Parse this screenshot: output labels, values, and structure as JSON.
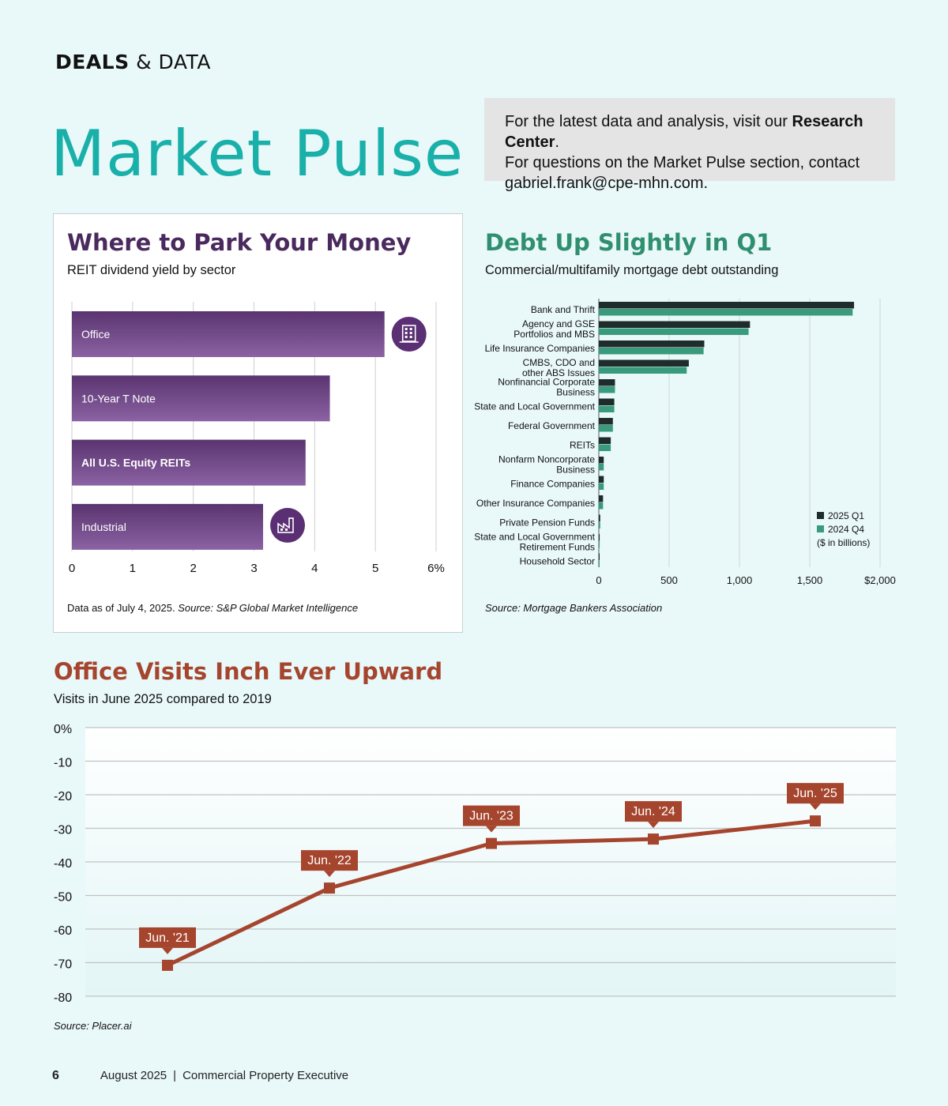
{
  "header": {
    "section_bold": "DEALS",
    "section_rest": " & DATA",
    "title": "Market Pulse"
  },
  "info": {
    "line1_pre": "For the latest data and analysis, visit our ",
    "line1_bold": "Research Center",
    "line1_post": ".",
    "line2": "For questions on the Market Pulse section, contact",
    "line3": "gabriel.frank@cpe-mhn.com."
  },
  "colors": {
    "teal": "#1ab0aa",
    "purple": "#5b2f73",
    "dark_green": "#1e2d2b",
    "green": "#3a9b7c",
    "rust": "#a6452e"
  },
  "chart1_text": {
    "title": "Where to Park Your Money",
    "subtitle": "REIT dividend yield by sector",
    "source_pre": "Data as of July 4, 2025. ",
    "source_italic": "Source: S&P Global Market Intelligence",
    "icons": [
      "office-building-icon",
      "factory-icon"
    ]
  },
  "chart2_text": {
    "title": "Debt Up Slightly in Q1",
    "subtitle": "Commercial/multifamily mortgage debt outstanding",
    "source": "Source: Mortgage Bankers Association",
    "legend_note": "($ in billions)"
  },
  "chart3_text": {
    "title": "Office Visits Inch Ever Upward",
    "subtitle": "Visits in June 2025 compared to 2019",
    "source": "Source: Placer.ai"
  },
  "chart_data": [
    {
      "type": "bar",
      "orientation": "horizontal",
      "categories": [
        "Office",
        "10-Year T Note",
        "All U.S. Equity REITs",
        "Industrial"
      ],
      "values": [
        5.15,
        4.25,
        3.85,
        3.15
      ],
      "xlim": [
        0,
        6
      ],
      "xticks": [
        "0",
        "1",
        "2",
        "3",
        "4",
        "5",
        "6%"
      ],
      "grid": true
    },
    {
      "type": "bar",
      "orientation": "horizontal",
      "categories": [
        "Bank and Thrift",
        "Agency and GSE Portfolios and MBS",
        "Life Insurance Companies",
        "CMBS, CDO and other ABS Issues",
        "Nonfinancial Corporate Business",
        "State and Local Government",
        "Federal Government",
        "REITs",
        "Nonfarm Noncorporate Business",
        "Finance Companies",
        "Other Insurance Companies",
        "Private Pension Funds",
        "State and Local Government Retirement Funds",
        "Household Sector"
      ],
      "category_lines": [
        [
          "Bank and Thrift"
        ],
        [
          "Agency and GSE",
          "Portfolios and MBS"
        ],
        [
          "Life Insurance Companies"
        ],
        [
          "CMBS, CDO and",
          "other ABS Issues"
        ],
        [
          "Nonfinancial Corporate",
          "Business"
        ],
        [
          "State and Local Government"
        ],
        [
          "Federal Government"
        ],
        [
          "REITs"
        ],
        [
          "Nonfarm Noncorporate",
          "Business"
        ],
        [
          "Finance Companies"
        ],
        [
          "Other Insurance Companies"
        ],
        [
          "Private Pension Funds"
        ],
        [
          "State and Local Government",
          "Retirement Funds"
        ],
        [
          "Household Sector"
        ]
      ],
      "series": [
        {
          "name": "2025 Q1",
          "values": [
            1815,
            1075,
            750,
            640,
            115,
            110,
            100,
            85,
            35,
            35,
            30,
            10,
            6,
            4
          ]
        },
        {
          "name": "2024 Q4",
          "values": [
            1805,
            1065,
            745,
            625,
            115,
            110,
            100,
            85,
            35,
            35,
            30,
            10,
            6,
            4
          ]
        }
      ],
      "xlim": [
        0,
        2000
      ],
      "xticks": [
        "0",
        "500",
        "1,000",
        "1,500",
        "$2,000"
      ],
      "legend": "right",
      "grid": true
    },
    {
      "type": "line",
      "x": [
        "Jun. '21",
        "Jun. '22",
        "Jun. '23",
        "Jun. '24",
        "Jun. '25"
      ],
      "values": [
        -70.8,
        -47.8,
        -34.5,
        -33.2,
        -27.8
      ],
      "ylim": [
        -80,
        0
      ],
      "yticks": [
        "0%",
        "-10",
        "-20",
        "-30",
        "-40",
        "-50",
        "-60",
        "-70",
        "-80"
      ],
      "grid": true
    }
  ],
  "footer": {
    "page": "6",
    "issue": "August 2025",
    "publication": "Commercial Property Executive"
  }
}
